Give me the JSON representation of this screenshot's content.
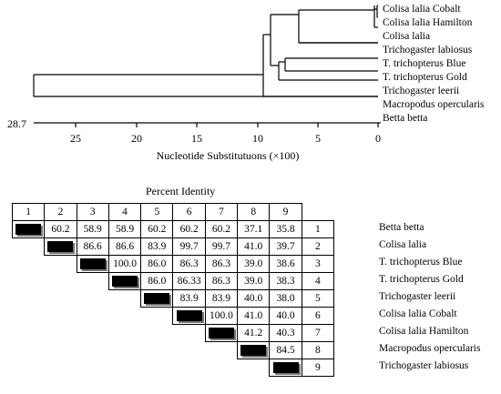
{
  "tree": {
    "leaves": [
      "Colisa lalia Cobalt",
      "Colisa lalia Hamilton",
      "Colisa lalia",
      "Trichogaster labiosus",
      "T. trichopterus Blue",
      "T. trichopterus Gold",
      "Trichogaster leerii",
      "Macropodus opercularis",
      "Betta betta"
    ],
    "axis_ticks": [
      "25",
      "20",
      "15",
      "10",
      "5",
      "0"
    ],
    "root_value": "28.7",
    "axis_label": "Nucleotide Substitutuons (×100)"
  },
  "matrix": {
    "title": "Percent Identity",
    "col_headers": [
      "1",
      "2",
      "3",
      "4",
      "5",
      "6",
      "7",
      "8",
      "9"
    ],
    "rows": [
      {
        "idx": "1",
        "name": "Betta betta",
        "values": [
          "60.2",
          "58.9",
          "58.9",
          "60.2",
          "60.2",
          "60.2",
          "37.1",
          "35.8"
        ]
      },
      {
        "idx": "2",
        "name": "Colisa lalia",
        "values": [
          "86.6",
          "86.6",
          "83.9",
          "99.7",
          "99.7",
          "41.0",
          "39.7"
        ]
      },
      {
        "idx": "3",
        "name": "T. trichopterus Blue",
        "values": [
          "100.0",
          "86.0",
          "86.3",
          "86.3",
          "39.0",
          "38.6"
        ]
      },
      {
        "idx": "4",
        "name": "T. trichopterus Gold",
        "values": [
          "86.0",
          "86.33",
          "86.3",
          "39.0",
          "38.3"
        ]
      },
      {
        "idx": "5",
        "name": "Trichogaster leerii",
        "values": [
          "83.9",
          "83.9",
          "40.0",
          "38.0"
        ]
      },
      {
        "idx": "6",
        "name": "Colisa lalia Cobalt",
        "values": [
          "100.0",
          "41.0",
          "40.0"
        ]
      },
      {
        "idx": "7",
        "name": "Colisa lalia Hamilton",
        "values": [
          "41.2",
          "40.3"
        ]
      },
      {
        "idx": "8",
        "name": "Macropodus opercularis",
        "values": [
          "84.5"
        ]
      },
      {
        "idx": "9",
        "name": "Trichogaster labiosus",
        "values": []
      }
    ]
  }
}
